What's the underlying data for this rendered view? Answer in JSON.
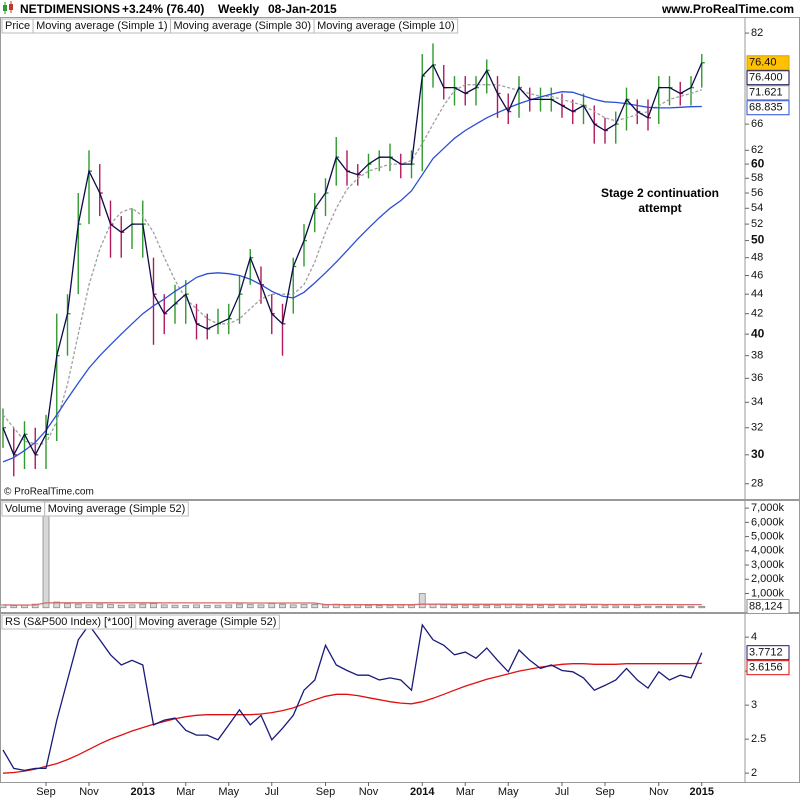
{
  "chart_data": [
    {
      "type": "ohlc",
      "title": "NETDIMENSIONS",
      "change": "+3.24% (76.40)",
      "period": "Weekly",
      "date": "08-Jan-2015",
      "source": "www.ProRealTime.com",
      "copyright": "© ProRealTime.com",
      "annotation": "Stage 2 continuation attempt",
      "log_scale": true,
      "ylim": [
        27,
        85
      ],
      "yticks": [
        28,
        30,
        32,
        34,
        36,
        38,
        40,
        42,
        44,
        46,
        48,
        50,
        52,
        54,
        56,
        58,
        60,
        62,
        66,
        82
      ],
      "series": [
        {
          "name": "Price",
          "up_color": "#2f9a2f",
          "down_color": "#b3185c",
          "label_color": "#ffc000",
          "last_label": "76.40",
          "high": [
            33.5,
            32,
            32.5,
            32,
            33,
            42,
            44,
            56,
            62,
            60,
            55,
            53,
            54,
            55,
            48,
            44,
            45,
            45.5,
            43,
            42,
            42.5,
            43,
            46,
            49,
            47,
            44,
            43,
            48,
            52,
            56,
            58,
            64,
            62,
            60,
            61.5,
            62,
            63,
            61.5,
            62,
            78,
            80,
            76,
            74,
            74,
            74,
            77,
            74,
            71,
            74,
            72,
            72,
            72,
            71,
            70,
            71,
            69,
            67,
            68,
            72,
            70,
            70,
            74,
            74,
            73,
            74,
            78
          ],
          "low": [
            30.5,
            28.5,
            29,
            29,
            29,
            31,
            38,
            44,
            52,
            53,
            48,
            48,
            49,
            48,
            39,
            40,
            41,
            41,
            39.5,
            39.5,
            40,
            40,
            41,
            45,
            43,
            40,
            38,
            42,
            47,
            51,
            53,
            57,
            57,
            57,
            58,
            59,
            59,
            58,
            58,
            59,
            72,
            70,
            69,
            69,
            69,
            71,
            67,
            66,
            67,
            68,
            68,
            68,
            67,
            66,
            66,
            63,
            63,
            63,
            65,
            66,
            65,
            66,
            69,
            69,
            69,
            72
          ],
          "values": [
            32,
            30,
            31.5,
            30,
            31.5,
            38,
            42,
            52,
            59,
            56,
            52,
            51,
            52,
            52,
            44,
            42,
            43,
            44,
            41,
            40.5,
            41,
            41.5,
            44,
            48,
            45,
            42,
            41,
            47,
            50,
            54,
            56,
            61,
            59,
            58.5,
            60,
            61,
            61,
            60,
            60,
            74,
            76,
            72,
            72,
            71,
            72,
            75,
            71,
            68,
            72,
            70,
            70,
            70,
            69,
            68,
            69,
            66,
            65,
            66,
            70,
            68,
            67,
            72,
            72,
            71,
            72,
            76.4
          ]
        },
        {
          "name": "Moving average (Simple 1)",
          "color": "#0b0b4a",
          "last_label": "76.400",
          "values": [
            32,
            30,
            31.5,
            30,
            31.5,
            38,
            42,
            52,
            59,
            56,
            52,
            51,
            52,
            52,
            44,
            42,
            43,
            44,
            41,
            40.5,
            41,
            41.5,
            44,
            48,
            45,
            42,
            41,
            47,
            50,
            54,
            56,
            61,
            59,
            58.5,
            60,
            61,
            61,
            60,
            60,
            74,
            76,
            72,
            72,
            71,
            72,
            75,
            71,
            68,
            72,
            70,
            70,
            70,
            69,
            68,
            69,
            66,
            65,
            66,
            70,
            68,
            67,
            72,
            72,
            71,
            72,
            76.4
          ]
        },
        {
          "name": "Moving average (Simple 30)",
          "color": "#2a4fd6",
          "values": [
            29.5,
            29.8,
            30.3,
            30.9,
            31.8,
            33,
            34.3,
            35.6,
            36.9,
            38,
            39,
            40,
            41,
            42,
            42.8,
            43.5,
            44.3,
            45,
            45.8,
            46.2,
            46.3,
            46.2,
            46,
            45.6,
            45,
            44.3,
            43.8,
            43.6,
            44.2,
            45.2,
            46.3,
            47.5,
            48.8,
            50.2,
            51.5,
            52.8,
            54,
            55,
            56.3,
            58.5,
            60.8,
            62.3,
            63.8,
            65,
            66,
            67,
            67.8,
            68.6,
            69.3,
            69.9,
            70.4,
            70.9,
            71.3,
            71.2,
            70.6,
            70,
            69.6,
            69.5,
            69.3,
            69,
            68.7,
            68.6,
            68.6,
            68.7,
            68.8,
            68.835
          ]
        },
        {
          "name": "Moving average (Simple 10)",
          "color": "#a0a0a0",
          "dashed": true,
          "values": [
            33,
            32,
            31,
            30.8,
            30.8,
            32.5,
            35.5,
            40,
            45,
            49,
            52,
            53.5,
            54,
            53,
            51,
            48,
            45.5,
            43.5,
            42.5,
            41.5,
            41,
            41,
            41.5,
            42.5,
            43.5,
            44,
            44,
            44,
            45,
            47.5,
            51,
            54,
            56.5,
            58,
            59,
            59.5,
            60,
            60,
            60.5,
            63,
            66,
            69,
            71.5,
            72.5,
            72.5,
            72.5,
            72.5,
            72,
            71.5,
            71,
            70.5,
            70.5,
            70,
            69.5,
            69,
            68,
            67,
            66.5,
            67,
            67.5,
            68,
            69,
            70,
            70.5,
            71,
            71.621
          ]
        }
      ]
    },
    {
      "type": "bar",
      "ylim": [
        -300000,
        7500000
      ],
      "yticks": [
        {
          "value": 1000000,
          "label": "1,000k"
        },
        {
          "value": 2000000,
          "label": "2,000k"
        },
        {
          "value": 3000000,
          "label": "3,000k"
        },
        {
          "value": 4000000,
          "label": "4,000k"
        },
        {
          "value": 5000000,
          "label": "5,000k"
        },
        {
          "value": 6000000,
          "label": "6,000k"
        },
        {
          "value": 7000000,
          "label": "7,000k"
        }
      ],
      "series": [
        {
          "name": "Volume",
          "color": "#8a8a8a",
          "last_label": "88,124",
          "values": [
            200000,
            150000,
            180000,
            250000,
            7450000,
            400000,
            300000,
            250000,
            200000,
            250000,
            220000,
            180000,
            200000,
            250000,
            300000,
            200000,
            180000,
            150000,
            200000,
            170000,
            180000,
            200000,
            250000,
            220000,
            200000,
            300000,
            250000,
            200000,
            220000,
            230000,
            200000,
            250000,
            180000,
            200000,
            160000,
            150000,
            170000,
            200000,
            180000,
            1000000,
            250000,
            200000,
            150000,
            180000,
            170000,
            160000,
            150000,
            200000,
            180000,
            170000,
            160000,
            150000,
            140000,
            130000,
            150000,
            120000,
            140000,
            130000,
            120000,
            150000,
            110000,
            100000,
            120000,
            110000,
            100000,
            88124
          ]
        },
        {
          "name": "Moving average (Simple 52)",
          "color": "#d46a6a",
          "values": [
            200000,
            195000,
            190000,
            200000,
            340000,
            345000,
            350000,
            350000,
            348000,
            347000,
            346000,
            345000,
            344000,
            343000,
            343000,
            342000,
            341000,
            340000,
            339000,
            338000,
            337000,
            336000,
            336000,
            335000,
            334000,
            333000,
            332000,
            331000,
            330000,
            330000,
            220000,
            218000,
            216000,
            215000,
            214000,
            213000,
            212000,
            211000,
            210000,
            245000,
            246000,
            245000,
            244000,
            243000,
            242000,
            241000,
            240000,
            239000,
            238000,
            237000,
            236000,
            235000,
            234000,
            233000,
            232000,
            231000,
            230000,
            229000,
            228000,
            227000,
            226000,
            225000,
            224000,
            223000,
            222000,
            221000
          ]
        }
      ]
    },
    {
      "type": "line",
      "ylim": [
        1.87,
        4.34
      ],
      "yticks": [
        2,
        2.5,
        3,
        3.5,
        4
      ],
      "categories": [
        null,
        null,
        null,
        null,
        "Sep",
        null,
        null,
        null,
        "Nov",
        null,
        null,
        null,
        null,
        "2013",
        null,
        null,
        null,
        "Mar",
        null,
        null,
        null,
        "May",
        null,
        null,
        null,
        "Jul",
        null,
        null,
        null,
        null,
        "Sep",
        null,
        null,
        null,
        "Nov",
        null,
        null,
        null,
        null,
        "2014",
        null,
        null,
        null,
        "Mar",
        null,
        null,
        null,
        "May",
        null,
        null,
        null,
        null,
        "Jul",
        null,
        null,
        null,
        "Sep",
        null,
        null,
        null,
        null,
        "Nov",
        null,
        null,
        null,
        "2015"
      ],
      "series": [
        {
          "name": "RS (S&P500 Index) [*100]",
          "color": "#1a1a7a",
          "values": [
            2.34,
            2.07,
            2.04,
            2.07,
            2.07,
            2.78,
            3.37,
            3.96,
            4.18,
            3.96,
            3.74,
            3.59,
            3.66,
            3.59,
            2.71,
            2.78,
            2.81,
            2.63,
            2.56,
            2.56,
            2.49,
            2.71,
            2.93,
            2.71,
            2.85,
            2.49,
            2.66,
            2.85,
            3.22,
            3.37,
            3.88,
            3.59,
            3.51,
            3.44,
            3.44,
            3.37,
            3.4,
            3.37,
            3.22,
            4.18,
            3.96,
            3.88,
            3.74,
            3.78,
            3.69,
            3.84,
            3.66,
            3.49,
            3.81,
            3.66,
            3.54,
            3.59,
            3.51,
            3.49,
            3.4,
            3.22,
            3.29,
            3.37,
            3.54,
            3.37,
            3.25,
            3.49,
            3.37,
            3.44,
            3.4,
            3.7712
          ]
        },
        {
          "name": "Moving average (Simple 52)",
          "color": "#e01010",
          "values": [
            2.0,
            2.01,
            2.03,
            2.06,
            2.1,
            2.14,
            2.2,
            2.27,
            2.35,
            2.43,
            2.5,
            2.56,
            2.62,
            2.67,
            2.72,
            2.76,
            2.8,
            2.83,
            2.85,
            2.86,
            2.86,
            2.86,
            2.86,
            2.86,
            2.87,
            2.89,
            2.92,
            2.96,
            3.02,
            3.08,
            3.13,
            3.16,
            3.16,
            3.14,
            3.11,
            3.08,
            3.05,
            3.03,
            3.02,
            3.05,
            3.1,
            3.16,
            3.22,
            3.28,
            3.33,
            3.38,
            3.42,
            3.46,
            3.5,
            3.53,
            3.56,
            3.58,
            3.6,
            3.61,
            3.61,
            3.6,
            3.6,
            3.6,
            3.61,
            3.61,
            3.61,
            3.61,
            3.61,
            3.61,
            3.61,
            3.6156
          ]
        }
      ]
    }
  ]
}
